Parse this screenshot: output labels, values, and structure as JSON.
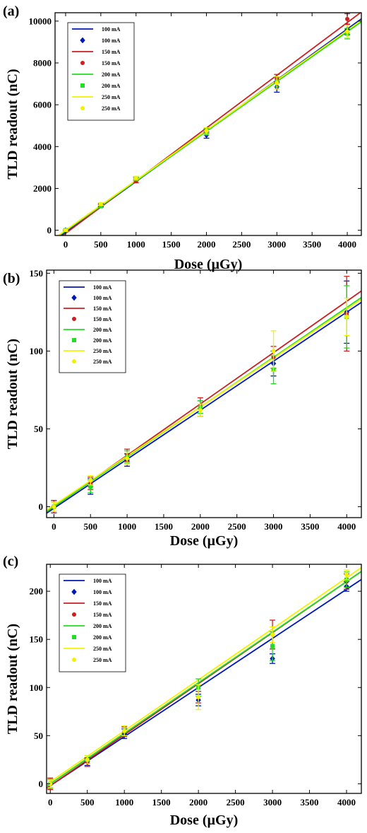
{
  "colors": {
    "100 mA": "#0018b8",
    "150 mA": "#cc1f1f",
    "200 mA": "#22dd22",
    "250 mA": "#f2f200"
  },
  "chart_data": [
    {
      "type": "line",
      "panel_label": "(a)",
      "xlabel": "Dose (µGy)",
      "ylabel": "TLD readout (nC)",
      "xlim": [
        -150,
        4200
      ],
      "ylim": [
        -250,
        10400
      ],
      "xticks": [
        0,
        500,
        1000,
        1500,
        2000,
        2500,
        3000,
        3500,
        4000
      ],
      "yticks": [
        0,
        2000,
        4000,
        6000,
        8000,
        10000
      ],
      "grid": false,
      "legend_position": "top-left",
      "legend_entries": [
        "100 mA",
        "100 mA",
        "150 mA",
        "150 mA",
        "200 mA",
        "200 mA",
        "250 mA",
        "250 mA"
      ],
      "x": [
        0,
        500,
        1000,
        2000,
        3000,
        4000
      ],
      "series": [
        {
          "name": "100 mA",
          "marker": "diamond",
          "values": [
            0,
            1200,
            2450,
            4550,
            6850,
            9600
          ],
          "errors": [
            40,
            60,
            80,
            150,
            250,
            250
          ],
          "fit": [
            -100,
            2.43
          ]
        },
        {
          "name": "150 mA",
          "marker": "dot",
          "values": [
            0,
            1150,
            2350,
            4750,
            7250,
            10100
          ],
          "errors": [
            40,
            60,
            80,
            120,
            200,
            250
          ],
          "fit": [
            -150,
            2.52
          ]
        },
        {
          "name": "200 mA",
          "marker": "square",
          "values": [
            0,
            1150,
            2450,
            4700,
            7100,
            9400
          ],
          "errors": [
            40,
            60,
            80,
            150,
            250,
            250
          ],
          "fit": [
            -30,
            2.38
          ]
        },
        {
          "name": "250 mA",
          "marker": "dot",
          "values": [
            0,
            1250,
            2500,
            4750,
            7050,
            9500
          ],
          "errors": [
            40,
            60,
            80,
            150,
            300,
            300
          ],
          "fit": [
            0,
            2.39
          ]
        }
      ]
    },
    {
      "type": "line",
      "panel_label": "(b)",
      "xlabel": "Dose (µGy)",
      "ylabel": "TLD readout (nC)",
      "xlim": [
        -100,
        4200
      ],
      "ylim": [
        -7,
        152
      ],
      "xticks": [
        0,
        500,
        1000,
        1500,
        2000,
        2500,
        3000,
        3500,
        4000
      ],
      "yticks": [
        0,
        50,
        100,
        150
      ],
      "grid": false,
      "legend_position": "top-left",
      "legend_entries": [
        "100 mA",
        "100 mA",
        "150 mA",
        "150 mA",
        "200 mA",
        "200 mA",
        "250 mA",
        "250 mA"
      ],
      "x": [
        0,
        500,
        1000,
        2000,
        3000,
        4000
      ],
      "series": [
        {
          "name": "100 mA",
          "marker": "diamond",
          "values": [
            0,
            13,
            30,
            63,
            92,
            125
          ],
          "errors": [
            4,
            5,
            4,
            5,
            8,
            20
          ],
          "fit": [
            -1,
            0.0315
          ]
        },
        {
          "name": "150 mA",
          "marker": "dot",
          "values": [
            0,
            15,
            33,
            65,
            96,
            124
          ],
          "errors": [
            4,
            4,
            4,
            5,
            7,
            24
          ],
          "fit": [
            0,
            0.033
          ]
        },
        {
          "name": "200 mA",
          "marker": "square",
          "values": [
            0,
            13,
            32,
            64,
            88,
            122
          ],
          "errors": [
            3,
            4,
            4,
            4,
            9,
            20
          ],
          "fit": [
            0,
            0.032
          ]
        },
        {
          "name": "250 mA",
          "marker": "dot",
          "values": [
            0,
            17,
            31,
            62,
            100,
            122
          ],
          "errors": [
            3,
            3,
            4,
            4,
            13,
            12
          ],
          "fit": [
            1,
            0.0315
          ]
        }
      ]
    },
    {
      "type": "line",
      "panel_label": "(c)",
      "xlabel": "Dose (µGy)",
      "ylabel": "TLD readout (nC)",
      "xlim": [
        -50,
        4200
      ],
      "ylim": [
        -10,
        228
      ],
      "xticks": [
        0,
        500,
        1000,
        1500,
        2000,
        2500,
        3000,
        3500,
        4000
      ],
      "yticks": [
        0,
        50,
        100,
        150,
        200
      ],
      "grid": false,
      "legend_position": "top-left",
      "legend_entries": [
        "100 mA",
        "100 mA",
        "150 mA",
        "150 mA",
        "200 mA",
        "200 mA",
        "250 mA",
        "250 mA"
      ],
      "x": [
        0,
        500,
        1000,
        2000,
        3000,
        4000
      ],
      "series": [
        {
          "name": "100 mA",
          "marker": "diamond",
          "values": [
            0,
            23,
            52,
            87,
            130,
            205
          ],
          "errors": [
            4,
            4,
            5,
            6,
            5,
            5
          ],
          "fit": [
            -2,
            0.051
          ]
        },
        {
          "name": "150 mA",
          "marker": "dot",
          "values": [
            0,
            22,
            54,
            90,
            155,
            210
          ],
          "errors": [
            6,
            4,
            5,
            6,
            15,
            8
          ],
          "fit": [
            -2,
            0.053
          ]
        },
        {
          "name": "200 mA",
          "marker": "square",
          "values": [
            0,
            25,
            55,
            100,
            143,
            212
          ],
          "errors": [
            5,
            4,
            5,
            9,
            15,
            8
          ],
          "fit": [
            0,
            0.0525
          ]
        },
        {
          "name": "250 mA",
          "marker": "dot",
          "values": [
            0,
            25,
            55,
            90,
            155,
            217
          ],
          "errors": [
            4,
            4,
            5,
            13,
            8,
            5
          ],
          "fit": [
            2,
            0.053
          ]
        }
      ]
    }
  ]
}
